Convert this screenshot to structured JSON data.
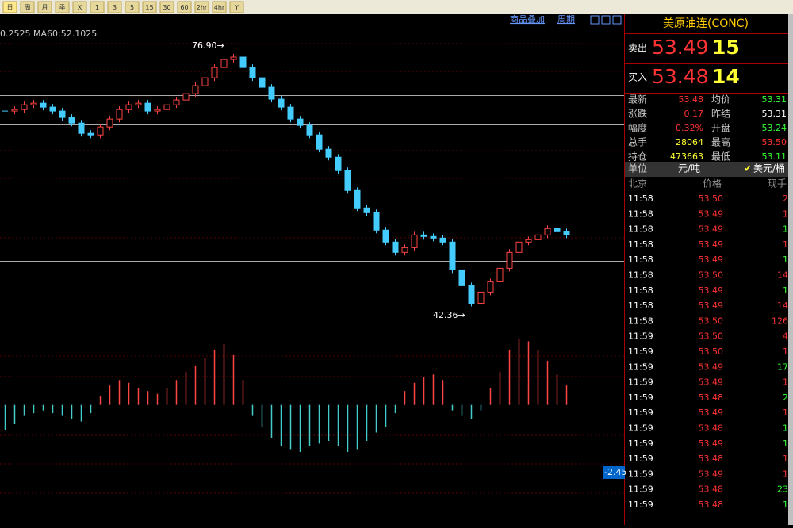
{
  "toolbar": {
    "buttons": [
      "日",
      "周",
      "月",
      "季",
      "X",
      "1",
      "3",
      "5",
      "15",
      "30",
      "60",
      "2hr",
      "4hr",
      "Y"
    ]
  },
  "chart": {
    "ma_label": "0.2525 MA60:52.1025",
    "links": [
      "商品叠加",
      "周期"
    ],
    "high_label": "76.90→",
    "low_label": "42.36→",
    "ylim": [
      40.8,
      81.8
    ],
    "closes": [
      69.03,
      69.23,
      69.86,
      70.07,
      69.55,
      69.03,
      68.19,
      67.45,
      66.09,
      65.88,
      66.93,
      67.98,
      69.23,
      69.86,
      70.07,
      69.03,
      69.23,
      69.86,
      70.49,
      71.33,
      72.38,
      73.42,
      74.78,
      75.83,
      76.15,
      74.78,
      73.42,
      72.17,
      70.6,
      69.55,
      67.98,
      67.14,
      65.88,
      64.0,
      62.95,
      61.17,
      58.55,
      56.25,
      55.62,
      53.32,
      51.75,
      50.39,
      51.01,
      52.69,
      52.48,
      52.27,
      51.75,
      48.08,
      45.99,
      43.68,
      45.15,
      46.51,
      48.29,
      50.39,
      51.75,
      52.06,
      52.69,
      53.53,
      53.11,
      52.69
    ],
    "macd": {
      "ylim": [
        -4.34,
        2.8
      ],
      "last_label": "-2.45",
      "values": [
        -0.9,
        -0.7,
        -0.4,
        -0.3,
        -0.2,
        -0.3,
        -0.4,
        -0.5,
        -0.6,
        -0.3,
        0.3,
        0.7,
        0.9,
        0.8,
        0.6,
        0.5,
        0.4,
        0.6,
        0.9,
        1.2,
        1.4,
        1.7,
        2.0,
        2.2,
        1.8,
        0.9,
        -0.4,
        -0.8,
        -1.2,
        -1.5,
        -1.6,
        -1.7,
        -1.5,
        -1.4,
        -1.3,
        -1.5,
        -1.7,
        -1.6,
        -1.3,
        -1.0,
        -0.8,
        -0.3,
        0.5,
        0.8,
        1.0,
        1.1,
        0.9,
        -0.2,
        -0.4,
        -0.5,
        -0.2,
        0.6,
        1.2,
        2.0,
        2.4,
        2.3,
        2.0,
        1.6,
        1.1,
        0.7
      ]
    }
  },
  "quote": {
    "title": "美原油连(CONC)",
    "sell": {
      "label": "卖出",
      "price": "53.49",
      "volume": "15"
    },
    "buy": {
      "label": "买入",
      "price": "53.48",
      "volume": "14"
    },
    "stats": [
      [
        "最新",
        "53.48",
        "均价",
        "53.31"
      ],
      [
        "涨跌",
        "0.17",
        "昨结",
        "53.31"
      ],
      [
        "幅度",
        "0.32%",
        "开盘",
        "53.24"
      ],
      [
        "总手",
        "28064",
        "最高",
        "53.50"
      ],
      [
        "持仓",
        "473663",
        "最低",
        "53.11"
      ]
    ],
    "stat_colors": [
      [
        "#f33",
        "#3f3"
      ],
      [
        "#f33",
        "#fff"
      ],
      [
        "#f33",
        "#3f3"
      ],
      [
        "#ff3",
        "#f33"
      ],
      [
        "#ff3",
        "#3f3"
      ]
    ],
    "unit": {
      "label": "单位",
      "option1": "元/吨",
      "option2": "美元/桶"
    },
    "trades": {
      "headers": [
        "北京",
        "价格",
        "现手"
      ],
      "rows": [
        [
          "11:58",
          "53.50",
          "2"
        ],
        [
          "11:58",
          "53.49",
          "1"
        ],
        [
          "11:58",
          "53.49",
          "1"
        ],
        [
          "11:58",
          "53.49",
          "1"
        ],
        [
          "11:58",
          "53.49",
          "1"
        ],
        [
          "11:58",
          "53.50",
          "14"
        ],
        [
          "11:58",
          "53.49",
          "1"
        ],
        [
          "11:58",
          "53.49",
          "14"
        ],
        [
          "11:58",
          "53.50",
          "126"
        ],
        [
          "11:59",
          "53.50",
          "4"
        ],
        [
          "11:59",
          "53.50",
          "1"
        ],
        [
          "11:59",
          "53.49",
          "17"
        ],
        [
          "11:59",
          "53.49",
          "1"
        ],
        [
          "11:59",
          "53.48",
          "2"
        ],
        [
          "11:59",
          "53.49",
          "1"
        ],
        [
          "11:59",
          "53.48",
          "1"
        ],
        [
          "11:59",
          "53.49",
          "1"
        ],
        [
          "11:59",
          "53.48",
          "1"
        ],
        [
          "11:59",
          "53.49",
          "1"
        ],
        [
          "11:59",
          "53.48",
          "23"
        ],
        [
          "11:59",
          "53.48",
          "1"
        ]
      ],
      "qty_colors": [
        "#f33",
        "#f33",
        "#3f3",
        "#f33",
        "#3f3",
        "#f33",
        "#3f3",
        "#f33",
        "#f33",
        "#f33",
        "#f33",
        "#3f3",
        "#f33",
        "#3f3",
        "#f33",
        "#3f3",
        "#3f3",
        "#f33",
        "#f33",
        "#3f3",
        "#3f3"
      ]
    }
  }
}
